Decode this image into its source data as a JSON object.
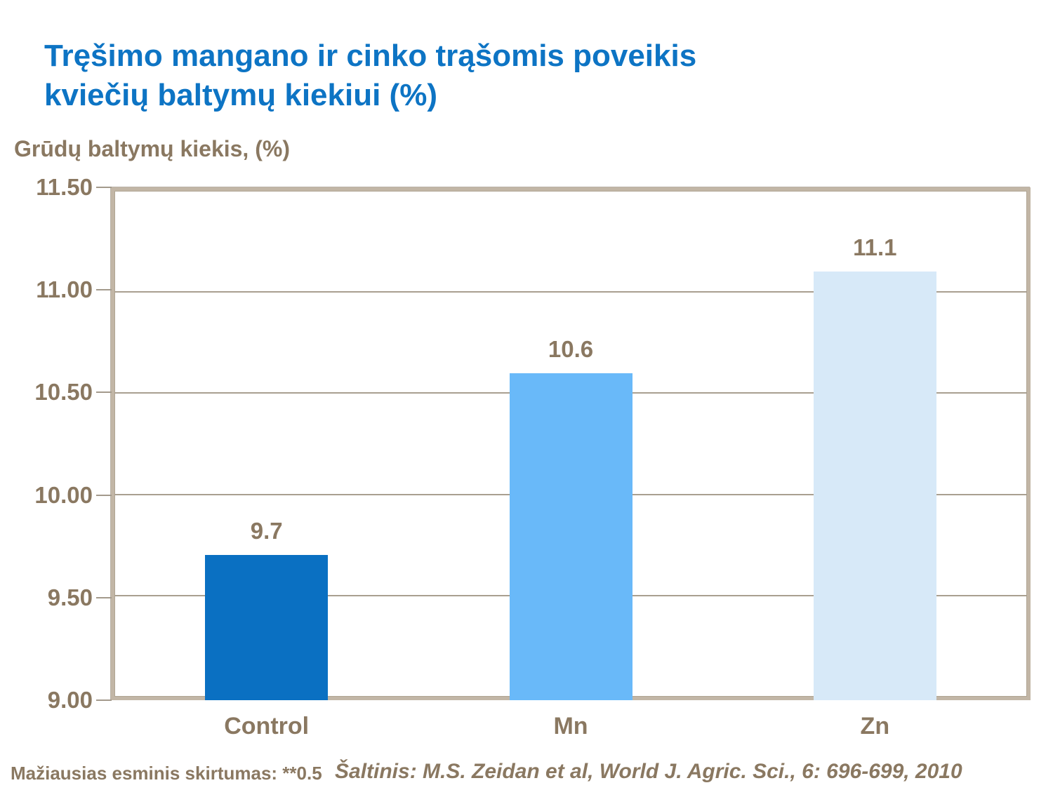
{
  "title": {
    "line1": "Tręšimo mangano ir cinko trąšomis poveikis",
    "line2": "kviečių baltymų kiekiui (%)"
  },
  "y_axis_title": "Grūdų baltymų kiekis, (%)",
  "footnote": "Mažiausias esminis skirtumas: **0.5",
  "source": "Šaltinis: M.S. Zeidan et al, World J. Agric. Sci., 6: 696-699, 2010",
  "colors": {
    "title_blue": "#0d74c4",
    "text_brown": "#8a7861",
    "plot_border_tan": "#c2b6a6",
    "gridline": "#a99f90",
    "bar_control": "#0a70c2",
    "bar_mn": "#69b9f9",
    "bar_zn": "#d7e9f8"
  },
  "chart_data": {
    "type": "bar",
    "title": "Tręšimo mangano ir cinko trąšomis poveikis kviečių baltymų kiekiui (%)",
    "ylabel": "Grūdų baltymų kiekis, (%)",
    "xlabel": "",
    "categories": [
      "Control",
      "Mn",
      "Zn"
    ],
    "values": [
      9.7,
      10.6,
      11.1
    ],
    "value_labels": [
      "9.7",
      "10.6",
      "11.1"
    ],
    "bar_colors": [
      "#0a70c2",
      "#69b9f9",
      "#d7e9f8"
    ],
    "ylim": [
      9.0,
      11.5
    ],
    "ytick_step": 0.5,
    "ytick_labels_top_to_bottom": [
      "11.50",
      "11.00",
      "10.50",
      "10.00",
      "9.50",
      "9.00"
    ],
    "grid": true,
    "legend_position": "none",
    "annotations": [
      "Mažiausias esminis skirtumas: **0.5",
      "Šaltinis: M.S. Zeidan et al, World J. Agric. Sci., 6: 696-699, 2010"
    ]
  }
}
